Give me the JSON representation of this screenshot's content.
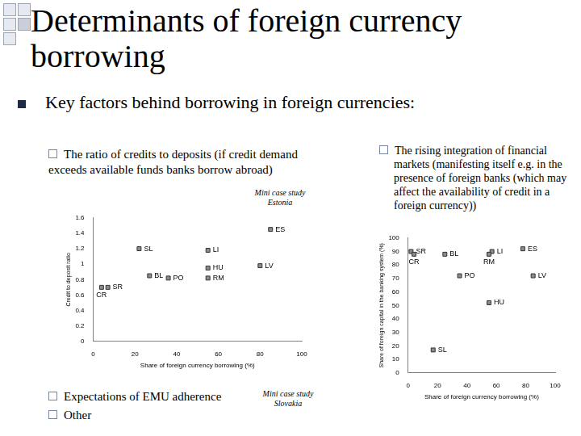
{
  "slide": {
    "title": "Determinants of foreign currency borrowing",
    "bullet": "Key factors behind borrowing in foreign currencies:",
    "points": [
      "The ratio of credits to deposits (if credit demand exceeds available funds banks borrow abroad)",
      "The rising integration of financial markets (manifesting itself e.g. in the presence of foreign banks (which may affect the availability of credit in a foreign currency))",
      "Expectations of EMU adherence",
      "Other"
    ]
  },
  "chart_data": [
    {
      "type": "scatter",
      "annotation": [
        "Mini case study",
        "Estonia"
      ],
      "x_label": "Share of foreign currency borrowing (%)",
      "y_label": "Credit to deposit ratio",
      "xlim": [
        0,
        100
      ],
      "xticks": [
        0,
        20,
        40,
        60,
        80,
        100
      ],
      "ylim": [
        0,
        1.6
      ],
      "yticks": [
        0,
        0.2,
        0.4,
        0.6,
        0.8,
        1,
        1.2,
        1.4,
        1.6
      ],
      "grid": false,
      "marker": "square",
      "color": "#8c8c8c",
      "x": [
        85,
        22,
        55,
        55,
        80,
        27,
        36,
        55,
        7,
        4
      ],
      "values": [
        1.45,
        1.2,
        1.18,
        0.95,
        0.98,
        0.85,
        0.82,
        0.82,
        0.7,
        0.7
      ],
      "point_labels": [
        "ES",
        "SL",
        "LI",
        "HU",
        "LV",
        "BL",
        "PO",
        "RM",
        "SR",
        "CR"
      ]
    },
    {
      "type": "scatter",
      "annotation": [
        "Mini case study",
        "Slovakia"
      ],
      "x_label": "Share of foreign currency borrowing (%)",
      "y_label": "Share of foreign capital in the banking system (%)",
      "xlim": [
        0,
        100
      ],
      "xticks": [
        0,
        20,
        40,
        60,
        80,
        100
      ],
      "ylim": [
        0,
        100
      ],
      "yticks": [
        0,
        10,
        20,
        30,
        40,
        50,
        60,
        70,
        80,
        90,
        100
      ],
      "grid": false,
      "marker": "square",
      "color": "#8c8c8c",
      "x": [
        2,
        4,
        25,
        57,
        55,
        78,
        35,
        85,
        55,
        17
      ],
      "values": [
        90,
        88,
        88,
        90,
        88,
        92,
        72,
        72,
        52,
        17
      ],
      "point_labels": [
        "SR",
        "CR",
        "BL",
        "LI",
        "RM",
        "ES",
        "PO",
        "LV",
        "HU",
        "SL"
      ]
    }
  ]
}
